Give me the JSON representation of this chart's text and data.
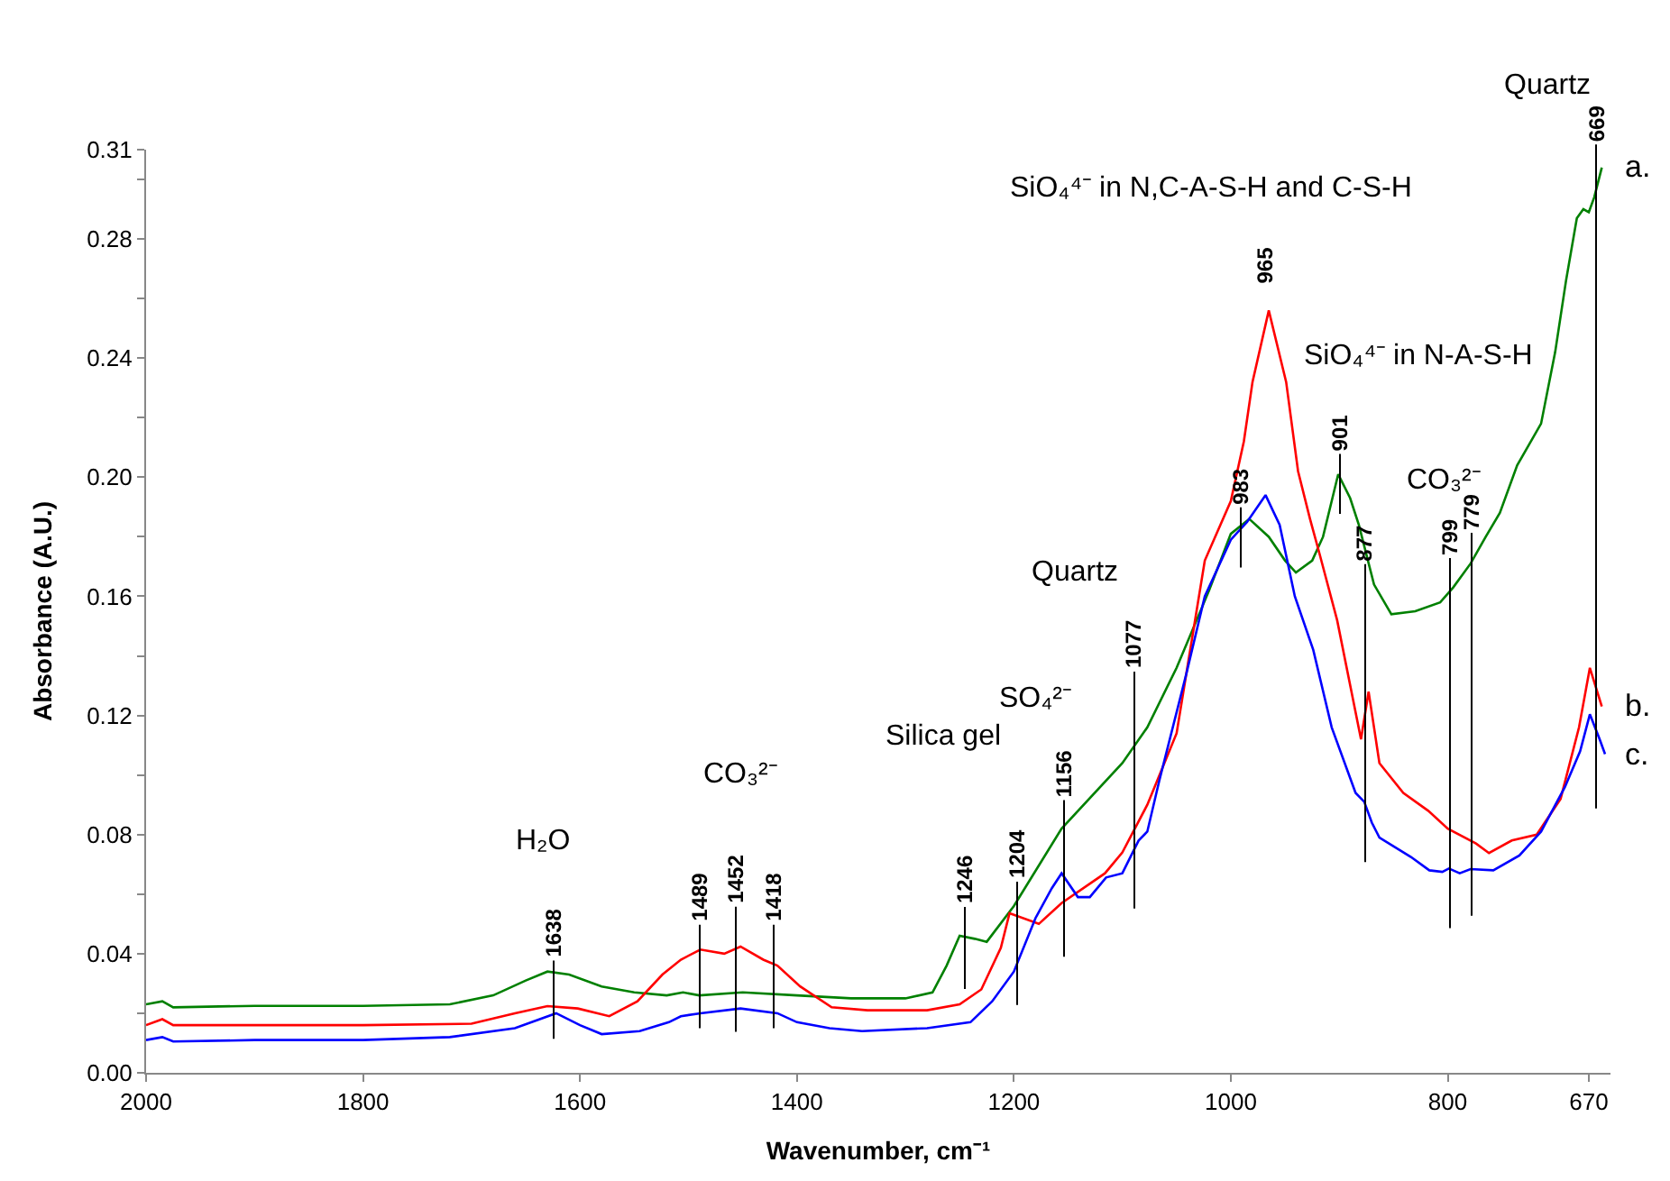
{
  "chart_data": {
    "type": "line",
    "xlabel": "Wavenumber, cm⁻¹",
    "ylabel": "Absorbance (A.U.)",
    "xlim": [
      2000,
      650
    ],
    "ylim": [
      0,
      0.31
    ],
    "xticks": [
      2000,
      1800,
      1600,
      1400,
      1200,
      1000,
      800,
      670
    ],
    "yticks": [
      {
        "value": 0,
        "label": "0.00"
      },
      {
        "value": 0.02,
        "label": null
      },
      0.04,
      {
        "value": 0.06,
        "label": null
      },
      0.08,
      {
        "value": 0.1,
        "label": null
      },
      0.12,
      {
        "value": 0.14,
        "label": null
      },
      0.16,
      {
        "value": 0.18,
        "label": null
      },
      {
        "value": 0.2,
        "label": "0.20"
      },
      {
        "value": 0.22,
        "label": null
      },
      0.24,
      {
        "value": 0.26,
        "label": null
      },
      0.28,
      {
        "value": 0.3,
        "label": null
      },
      0.31
    ],
    "legend": false,
    "marker": "none",
    "line_style": "solid",
    "series": [
      {
        "name": "a.",
        "color": "#008000",
        "x": [
          2000,
          1985,
          1975,
          1900,
          1800,
          1720,
          1680,
          1650,
          1630,
          1610,
          1580,
          1550,
          1520,
          1505,
          1490,
          1450,
          1400,
          1350,
          1300,
          1275,
          1262,
          1250,
          1236,
          1225,
          1200,
          1156,
          1100,
          1077,
          1050,
          1020,
          1000,
          983,
          965,
          950,
          940,
          925,
          915,
          901,
          890,
          882,
          868,
          852,
          830,
          807,
          795,
          779,
          765,
          752,
          736,
          714,
          701,
          691,
          681,
          675,
          670,
          665,
          658
        ],
        "values": [
          0.023,
          0.024,
          0.022,
          0.0225,
          0.0225,
          0.023,
          0.026,
          0.031,
          0.034,
          0.033,
          0.029,
          0.027,
          0.026,
          0.027,
          0.026,
          0.027,
          0.026,
          0.025,
          0.025,
          0.027,
          0.036,
          0.046,
          0.045,
          0.044,
          0.056,
          0.082,
          0.104,
          0.116,
          0.136,
          0.162,
          0.181,
          0.186,
          0.18,
          0.172,
          0.168,
          0.172,
          0.18,
          0.201,
          0.193,
          0.184,
          0.164,
          0.154,
          0.155,
          0.158,
          0.163,
          0.171,
          0.18,
          0.188,
          0.204,
          0.218,
          0.242,
          0.266,
          0.287,
          0.29,
          0.289,
          0.294,
          0.304
        ]
      },
      {
        "name": "b.",
        "color": "#ff0000",
        "x": [
          2000,
          1985,
          1975,
          1900,
          1800,
          1700,
          1660,
          1630,
          1602,
          1573,
          1547,
          1524,
          1507,
          1489,
          1467,
          1452,
          1431,
          1418,
          1397,
          1368,
          1335,
          1280,
          1250,
          1230,
          1212,
          1204,
          1177,
          1156,
          1116,
          1100,
          1077,
          1050,
          1024,
          1000,
          988,
          980,
          965,
          949,
          938,
          927,
          918,
          902,
          880,
          873,
          863,
          841,
          818,
          800,
          774,
          762,
          741,
          718,
          696,
          679,
          669,
          658
        ],
        "values": [
          0.016,
          0.018,
          0.016,
          0.016,
          0.016,
          0.0165,
          0.02,
          0.0224,
          0.0216,
          0.019,
          0.024,
          0.033,
          0.038,
          0.0414,
          0.04,
          0.0424,
          0.038,
          0.036,
          0.029,
          0.022,
          0.021,
          0.021,
          0.023,
          0.028,
          0.042,
          0.0536,
          0.05,
          0.057,
          0.067,
          0.074,
          0.09,
          0.114,
          0.172,
          0.192,
          0.212,
          0.232,
          0.256,
          0.232,
          0.202,
          0.186,
          0.174,
          0.152,
          0.112,
          0.128,
          0.104,
          0.094,
          0.088,
          0.082,
          0.077,
          0.0738,
          0.078,
          0.08,
          0.092,
          0.116,
          0.136,
          0.123
        ]
      },
      {
        "name": "c.",
        "color": "#0000ff",
        "x": [
          2000,
          1985,
          1975,
          1900,
          1800,
          1720,
          1660,
          1622,
          1600,
          1580,
          1545,
          1518,
          1507,
          1489,
          1452,
          1418,
          1400,
          1370,
          1340,
          1280,
          1240,
          1220,
          1200,
          1180,
          1165,
          1156,
          1141,
          1130,
          1115,
          1100,
          1085,
          1077,
          1066,
          1041,
          1024,
          1000,
          985,
          968,
          955,
          941,
          924,
          907,
          885,
          877,
          870,
          863,
          834,
          817,
          805,
          799,
          789,
          779,
          758,
          734,
          714,
          692,
          678,
          669,
          660,
          655
        ],
        "values": [
          0.011,
          0.012,
          0.0105,
          0.011,
          0.011,
          0.012,
          0.015,
          0.02,
          0.016,
          0.013,
          0.014,
          0.017,
          0.019,
          0.02,
          0.0216,
          0.02,
          0.017,
          0.015,
          0.014,
          0.015,
          0.017,
          0.024,
          0.034,
          0.052,
          0.062,
          0.067,
          0.059,
          0.059,
          0.0656,
          0.067,
          0.078,
          0.081,
          0.098,
          0.134,
          0.16,
          0.179,
          0.185,
          0.194,
          0.184,
          0.16,
          0.142,
          0.116,
          0.094,
          0.091,
          0.084,
          0.079,
          0.0725,
          0.068,
          0.0675,
          0.0686,
          0.067,
          0.0684,
          0.068,
          0.073,
          0.081,
          0.096,
          0.108,
          0.1204,
          0.112,
          0.107
        ]
      }
    ],
    "annotations": [
      "1638",
      "1489",
      "1452",
      "1418",
      "1246",
      "1204",
      "1156",
      "1077",
      "983",
      "965",
      "901",
      "877",
      "799",
      "779",
      "669",
      "SiO₄⁴⁻ in N,C-A-S-H and C-S-H",
      "SiO₄⁴⁻ in N-A-S-H",
      "CO₃²⁻",
      "Quartz",
      "SO₄²⁻",
      "Silica gel",
      "CO₃²⁻",
      "H₂O",
      "Quartz"
    ]
  }
}
